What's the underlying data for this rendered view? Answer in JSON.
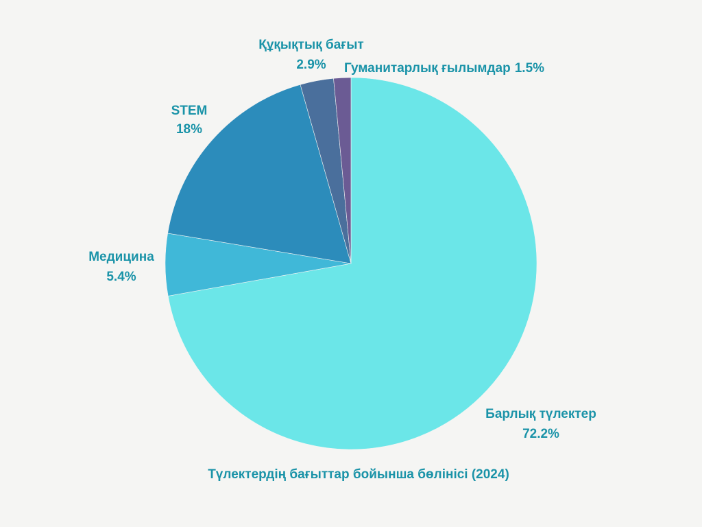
{
  "chart_data": {
    "type": "pie",
    "title": "Түлектердің бағыттар бойынша бөлінісі (2024)",
    "start": "top",
    "direction": "clockwise",
    "slices": [
      {
        "label": "Барлық түлектер",
        "value": 72.2,
        "value_label": "72.2%",
        "color": "#6be6e8"
      },
      {
        "label": "Медицина",
        "value": 5.4,
        "value_label": "5.4%",
        "color": "#40b8d8"
      },
      {
        "label": "STEM",
        "value": 18,
        "value_label": "18%",
        "color": "#2c8cbb"
      },
      {
        "label": "Құқықтық бағыт",
        "value": 2.9,
        "value_label": "2.9%",
        "color": "#4a6f9c"
      },
      {
        "label": "Гуманитарлық ғылымдар",
        "value": 1.5,
        "value_label": "1.5%",
        "color": "#6b5b94"
      }
    ],
    "label_text_color": "#1a93a8"
  }
}
